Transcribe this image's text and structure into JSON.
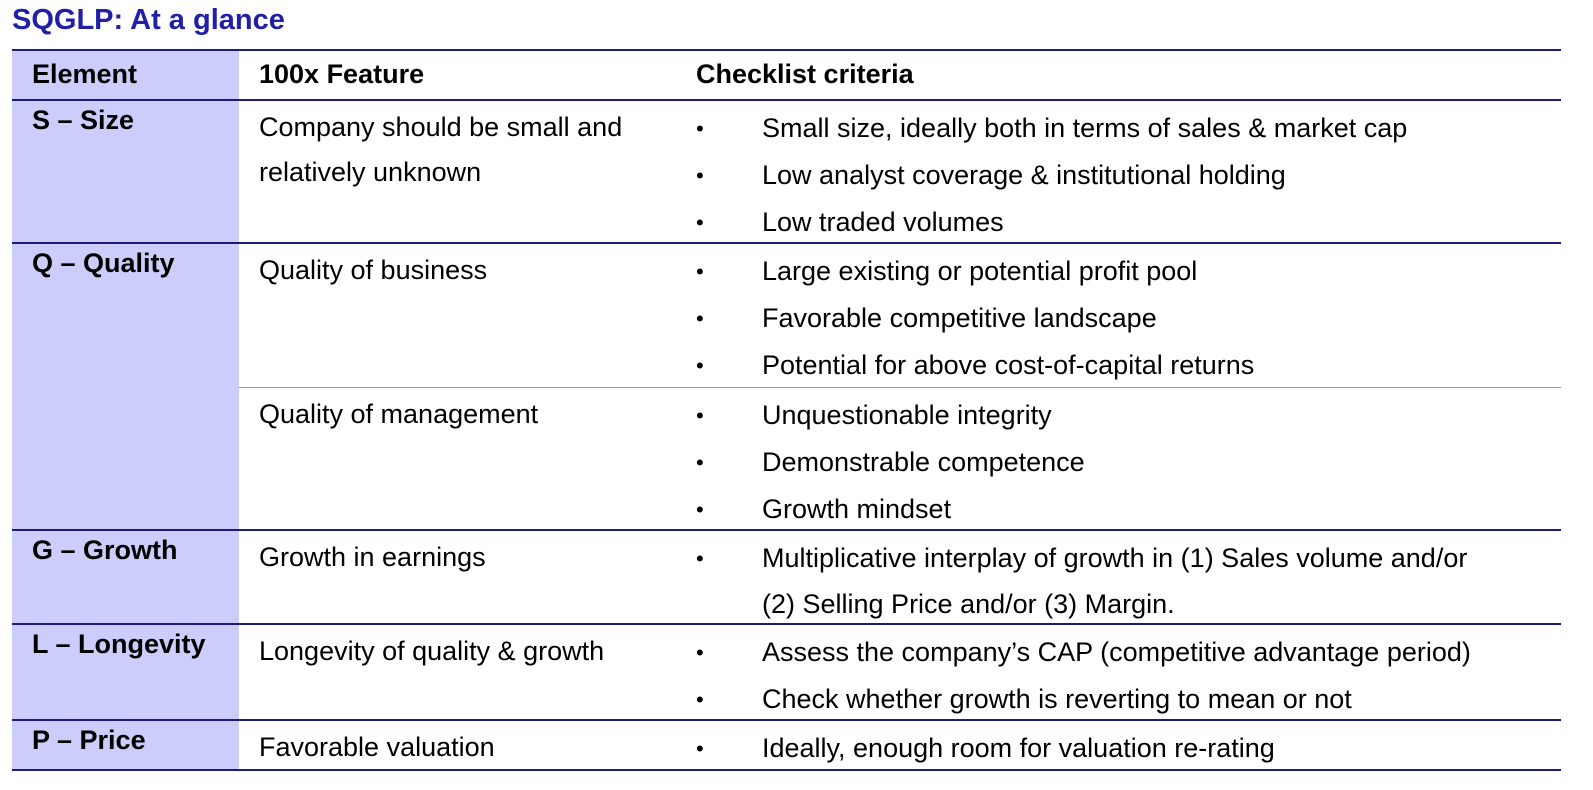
{
  "title": "SQGLP: At a glance",
  "headers": {
    "element": "Element",
    "feature": "100x Feature",
    "criteria": "Checklist criteria"
  },
  "bullet": "•",
  "rows": [
    {
      "element": "S – Size",
      "groups": [
        {
          "feature": "Company should be small and relatively unknown",
          "criteria": [
            "Small size, ideally both in terms of sales & market cap",
            "Low analyst coverage & institutional holding",
            "Low traded volumes"
          ]
        }
      ]
    },
    {
      "element": "Q – Quality",
      "groups": [
        {
          "feature": "Quality of business",
          "criteria": [
            "Large existing or potential profit pool",
            "Favorable competitive landscape",
            "Potential for above cost-of-capital returns"
          ]
        },
        {
          "feature": "Quality of management",
          "criteria": [
            "Unquestionable integrity",
            "Demonstrable competence",
            "Growth mindset"
          ]
        }
      ]
    },
    {
      "element": "G – Growth",
      "groups": [
        {
          "feature": "Growth in earnings",
          "criteria": [
            "Multiplicative interplay of growth in (1) Sales volume and/or (2) Selling Price and/or (3) Margin."
          ]
        }
      ]
    },
    {
      "element": "L – Longevity",
      "groups": [
        {
          "feature": "Longevity of quality & growth",
          "criteria": [
            "Assess the company’s CAP (competitive advantage period)",
            "Check whether growth is reverting to mean or not"
          ]
        }
      ]
    },
    {
      "element": "P – Price",
      "groups": [
        {
          "feature": "Favorable valuation",
          "criteria": [
            "Ideally, enough room for valuation re-rating"
          ]
        }
      ]
    }
  ]
}
